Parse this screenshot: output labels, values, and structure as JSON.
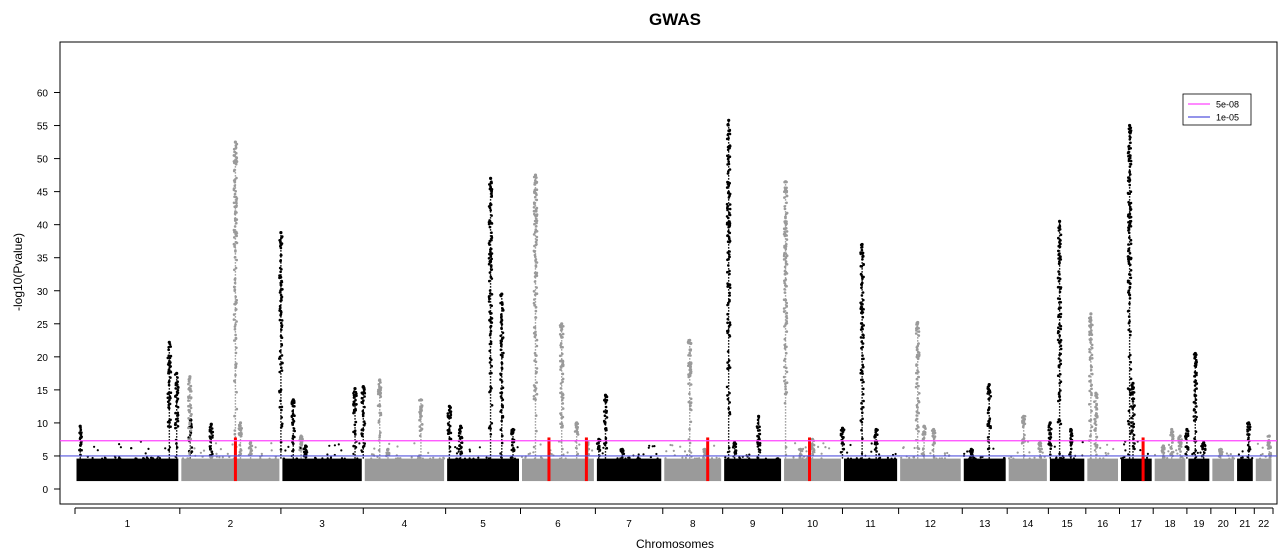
{
  "chart_data": {
    "type": "scatter",
    "title": "GWAS",
    "xlabel": "Chromosomes",
    "ylabel": "-log10(Pvalue)",
    "ylim": [
      0,
      65
    ],
    "yticks": [
      0,
      5,
      10,
      15,
      20,
      25,
      30,
      35,
      40,
      45,
      50,
      55,
      60
    ],
    "grid": false,
    "legend_position": "top-right",
    "thresholds": [
      {
        "label": "5e-08",
        "value": 7.3,
        "color": "#ff44ff"
      },
      {
        "label": "1e-05",
        "value": 5.0,
        "color": "#5555dd"
      }
    ],
    "colors": {
      "dark": "#000000",
      "light": "#9a9a9a",
      "highlight": "#ff0000"
    },
    "chromosomes": [
      {
        "label": "1",
        "start": 0,
        "end": 1.4,
        "shade": "dark",
        "peaks": [
          [
            0.05,
            9.5
          ],
          [
            0.9,
            22.2
          ],
          [
            0.97,
            17.5
          ],
          [
            1.1,
            10.5
          ],
          [
            1.3,
            9.8
          ]
        ],
        "highlight": []
      },
      {
        "label": "2",
        "start": 1.4,
        "end": 2.75,
        "shade": "light",
        "peaks": [
          [
            0.1,
            17.0
          ],
          [
            0.55,
            52.5
          ],
          [
            0.6,
            10.0
          ],
          [
            0.7,
            7.0
          ],
          [
            1.2,
            8.0
          ]
        ],
        "highlight": [
          0.55
        ]
      },
      {
        "label": "3",
        "start": 2.75,
        "end": 3.85,
        "shade": "dark",
        "peaks": [
          [
            0.0,
            38.8
          ],
          [
            0.15,
            13.5
          ],
          [
            0.3,
            6.5
          ],
          [
            0.9,
            15.2
          ],
          [
            1.0,
            15.5
          ]
        ],
        "highlight": []
      },
      {
        "label": "4",
        "start": 3.85,
        "end": 4.95,
        "shade": "light",
        "peaks": [
          [
            0.2,
            16.5
          ],
          [
            0.7,
            13.5
          ],
          [
            0.3,
            6.0
          ]
        ],
        "highlight": []
      },
      {
        "label": "5",
        "start": 4.95,
        "end": 5.95,
        "shade": "dark",
        "peaks": [
          [
            0.05,
            12.5
          ],
          [
            0.2,
            9.5
          ],
          [
            0.6,
            47.0
          ],
          [
            0.75,
            29.5
          ],
          [
            0.9,
            9.0
          ]
        ],
        "highlight": []
      },
      {
        "label": "6",
        "start": 5.95,
        "end": 6.95,
        "shade": "light",
        "peaks": [
          [
            0.2,
            47.5
          ],
          [
            0.55,
            25.0
          ],
          [
            0.75,
            10.0
          ],
          [
            0.9,
            7.0
          ]
        ],
        "highlight": [
          0.38,
          0.88
        ]
      },
      {
        "label": "7",
        "start": 6.95,
        "end": 7.85,
        "shade": "dark",
        "peaks": [
          [
            0.15,
            14.2
          ],
          [
            0.05,
            7.5
          ],
          [
            0.4,
            6.0
          ]
        ],
        "highlight": []
      },
      {
        "label": "8",
        "start": 7.85,
        "end": 8.65,
        "shade": "light",
        "peaks": [
          [
            0.45,
            22.5
          ],
          [
            0.7,
            6.0
          ]
        ],
        "highlight": [
          0.75
        ]
      },
      {
        "label": "9",
        "start": 8.65,
        "end": 9.45,
        "shade": "dark",
        "peaks": [
          [
            0.1,
            55.8
          ],
          [
            0.2,
            7.0
          ],
          [
            0.6,
            11.0
          ]
        ],
        "highlight": []
      },
      {
        "label": "10",
        "start": 9.45,
        "end": 10.25,
        "shade": "light",
        "peaks": [
          [
            0.05,
            46.5
          ],
          [
            0.3,
            6.0
          ],
          [
            0.5,
            7.5
          ]
        ],
        "highlight": [
          0.45
        ]
      },
      {
        "label": "11",
        "start": 10.25,
        "end": 11.0,
        "shade": "dark",
        "peaks": [
          [
            0.0,
            9.2
          ],
          [
            0.35,
            37.0
          ],
          [
            0.6,
            9.0
          ]
        ],
        "highlight": []
      },
      {
        "label": "12",
        "start": 11.0,
        "end": 11.85,
        "shade": "light",
        "peaks": [
          [
            0.3,
            25.2
          ],
          [
            0.4,
            9.5
          ],
          [
            0.55,
            9.0
          ]
        ],
        "highlight": []
      },
      {
        "label": "13",
        "start": 11.85,
        "end": 12.45,
        "shade": "dark",
        "peaks": [
          [
            0.2,
            6.0
          ],
          [
            0.6,
            15.8
          ]
        ],
        "highlight": []
      },
      {
        "label": "14",
        "start": 12.45,
        "end": 13.0,
        "shade": "light",
        "peaks": [
          [
            0.4,
            11.0
          ],
          [
            0.8,
            7.0
          ]
        ],
        "highlight": []
      },
      {
        "label": "15",
        "start": 13.0,
        "end": 13.5,
        "shade": "dark",
        "peaks": [
          [
            0.05,
            10.0
          ],
          [
            0.3,
            40.5
          ],
          [
            0.6,
            9.0
          ]
        ],
        "highlight": []
      },
      {
        "label": "16",
        "start": 13.5,
        "end": 13.95,
        "shade": "light",
        "peaks": [
          [
            0.15,
            26.5
          ],
          [
            0.3,
            14.5
          ]
        ],
        "highlight": []
      },
      {
        "label": "17",
        "start": 13.95,
        "end": 14.4,
        "shade": "dark",
        "peaks": [
          [
            0.3,
            55.0
          ],
          [
            0.4,
            16.0
          ]
        ],
        "highlight": [
          0.7
        ]
      },
      {
        "label": "18",
        "start": 14.4,
        "end": 14.85,
        "shade": "light",
        "peaks": [
          [
            0.3,
            6.5
          ],
          [
            0.55,
            9.0
          ],
          [
            0.8,
            8.0
          ]
        ],
        "highlight": []
      },
      {
        "label": "19",
        "start": 14.85,
        "end": 15.17,
        "shade": "dark",
        "peaks": [
          [
            0.0,
            9.0
          ],
          [
            0.35,
            20.5
          ],
          [
            0.7,
            7.0
          ]
        ],
        "highlight": []
      },
      {
        "label": "20",
        "start": 15.17,
        "end": 15.5,
        "shade": "light",
        "peaks": [
          [
            0.4,
            6.0
          ]
        ],
        "highlight": []
      },
      {
        "label": "21",
        "start": 15.5,
        "end": 15.75,
        "shade": "dark",
        "peaks": [
          [
            0.7,
            10.0
          ]
        ],
        "highlight": []
      },
      {
        "label": "22",
        "start": 15.75,
        "end": 16.0,
        "shade": "light",
        "peaks": [
          [
            0.8,
            8.0
          ]
        ],
        "highlight": []
      }
    ]
  }
}
